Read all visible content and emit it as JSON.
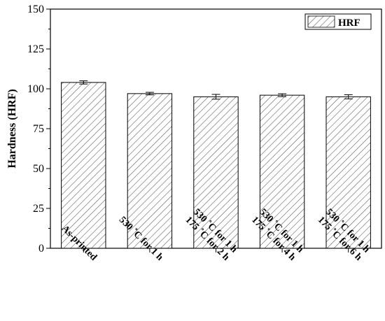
{
  "chart_data": {
    "type": "bar",
    "title": "",
    "xlabel": "",
    "ylabel": "Hardness (HRF)",
    "ylim": [
      0,
      150
    ],
    "yticks": [
      0,
      25,
      50,
      75,
      100,
      125,
      150
    ],
    "grid": false,
    "legend": {
      "position": "top-right"
    },
    "categories": [
      [
        "As-printed"
      ],
      [
        "530 ˚C for 1 h"
      ],
      [
        "530 ˚C for 1 h",
        "175 ˚C for 2 h"
      ],
      [
        "530 ˚C for 1 h",
        "175 ˚C for 4 h"
      ],
      [
        "530 ˚C for 1 h",
        "175 ˚C for 6 h"
      ]
    ],
    "series": [
      {
        "name": "HRF",
        "values": [
          104,
          97,
          95,
          96,
          95
        ],
        "errors": [
          1,
          0.8,
          1.5,
          0.9,
          1.3
        ],
        "fill": "hatched",
        "color": "#000000"
      }
    ]
  }
}
